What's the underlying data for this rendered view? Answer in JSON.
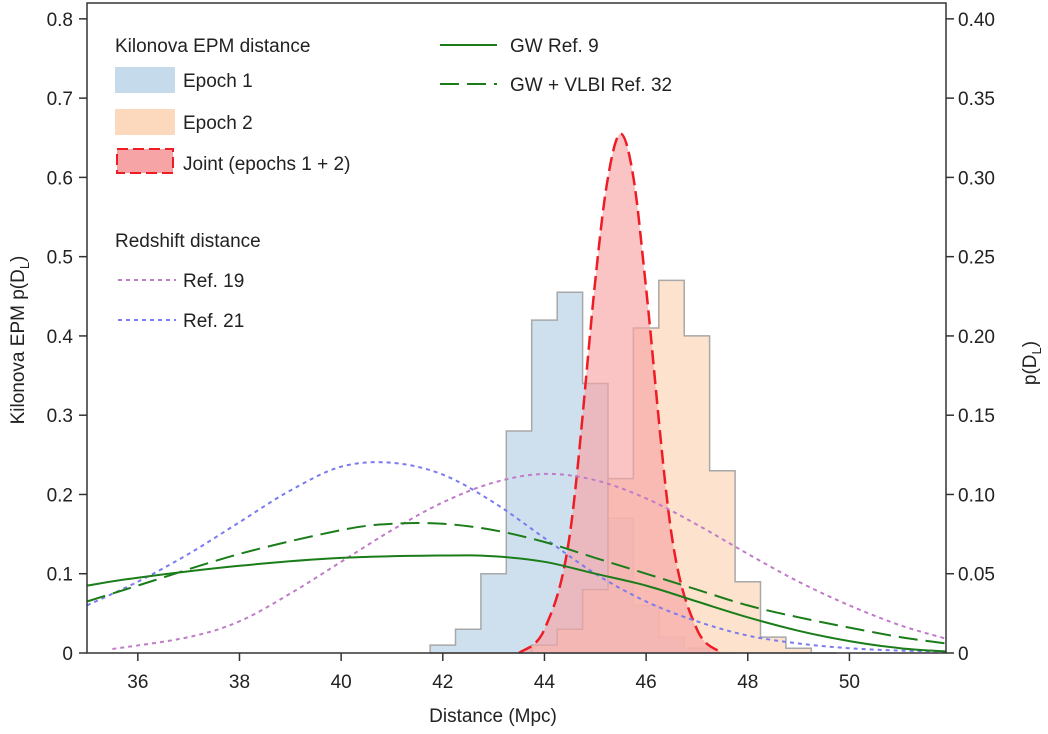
{
  "chart_data": {
    "type": "area",
    "xlabel": "Distance (Mpc)",
    "ylabel_left": "Kilonova EPM p(D",
    "ylabel_left_sub": "L",
    "ylabel_left_close": ")",
    "ylabel_right": "p(D",
    "ylabel_right_sub": "L",
    "ylabel_right_close": ")",
    "xlim": [
      35.0,
      51.9
    ],
    "ylim_left": [
      0,
      0.82
    ],
    "ylim_right": [
      0,
      0.41
    ],
    "x_ticks": [
      36,
      38,
      40,
      42,
      44,
      46,
      48,
      50
    ],
    "y_ticks_left": [
      "0",
      "0.1",
      "0.2",
      "0.3",
      "0.4",
      "0.5",
      "0.6",
      "0.7",
      "0.8"
    ],
    "y_ticks_right": [
      "0",
      "0.05",
      "0.10",
      "0.15",
      "0.20",
      "0.25",
      "0.30",
      "0.35",
      "0.40"
    ],
    "grid": false,
    "legend": {
      "group1_title": "Kilonova EPM distance",
      "group2_title": "Redshift distance",
      "epoch1": "Epoch 1",
      "epoch2": "Epoch 2",
      "joint": "Joint (epochs 1 + 2)",
      "ref19": "Ref. 19",
      "ref21": "Ref. 21",
      "gw": "GW Ref. 9",
      "gw_vlbi": "GW + VLBI Ref. 32"
    },
    "colors": {
      "epoch1_fill": "#c5dbeb",
      "epoch2_fill": "#fcd9bd",
      "joint_fill": "#f7a4a6",
      "joint_line": "#ee1c24",
      "outline": "#a8a8a8",
      "ref19": "#c07cc8",
      "ref21": "#7b7bf0",
      "gw": "#1a7d1a"
    },
    "series": [
      {
        "id": "epoch1",
        "axis": "left",
        "style": "histogram",
        "x": [
          42.0,
          42.5,
          43.0,
          43.5,
          44.0,
          44.5,
          45.0,
          45.5,
          46.0,
          46.5,
          47.0,
          47.5
        ],
        "values": [
          0.01,
          0.03,
          0.1,
          0.28,
          0.42,
          0.455,
          0.34,
          0.17,
          0.06,
          0.02,
          0.006,
          0.0
        ]
      },
      {
        "id": "epoch2",
        "axis": "left",
        "style": "histogram",
        "x": [
          44.0,
          44.5,
          45.0,
          45.5,
          46.0,
          46.5,
          47.0,
          47.5,
          48.0,
          48.5,
          49.0,
          49.5
        ],
        "values": [
          0.01,
          0.03,
          0.08,
          0.22,
          0.41,
          0.47,
          0.4,
          0.23,
          0.09,
          0.02,
          0.006,
          0.0
        ]
      },
      {
        "id": "joint",
        "axis": "left",
        "style": "dashed-fill",
        "x": [
          43.5,
          44.0,
          44.5,
          45.0,
          45.25,
          45.5,
          45.75,
          46.0,
          46.5,
          47.0,
          47.5
        ],
        "values": [
          0.0,
          0.03,
          0.15,
          0.47,
          0.6,
          0.655,
          0.6,
          0.46,
          0.15,
          0.03,
          0.0
        ]
      },
      {
        "id": "ref19",
        "axis": "left",
        "style": "dotted",
        "x": [
          35.5,
          37,
          38,
          39,
          40,
          41,
          42,
          43,
          44,
          45,
          46,
          47,
          48,
          49,
          50,
          51,
          51.9
        ],
        "values": [
          0.005,
          0.02,
          0.04,
          0.075,
          0.115,
          0.155,
          0.19,
          0.215,
          0.226,
          0.218,
          0.195,
          0.162,
          0.125,
          0.09,
          0.06,
          0.035,
          0.018
        ]
      },
      {
        "id": "ref21",
        "axis": "left",
        "style": "dotted",
        "x": [
          35,
          36,
          37,
          38,
          39,
          40,
          41,
          42,
          43,
          44,
          45,
          46,
          47,
          48,
          49,
          50,
          51,
          51.9
        ],
        "values": [
          0.06,
          0.09,
          0.125,
          0.165,
          0.205,
          0.235,
          0.24,
          0.225,
          0.19,
          0.145,
          0.1,
          0.065,
          0.04,
          0.022,
          0.012,
          0.006,
          0.003,
          0.002
        ]
      },
      {
        "id": "gw",
        "axis": "left",
        "style": "solid",
        "x": [
          35,
          36,
          38,
          40,
          42,
          43,
          44,
          45,
          46,
          47,
          48,
          49,
          50,
          51,
          51.9
        ],
        "values": [
          0.085,
          0.095,
          0.11,
          0.12,
          0.123,
          0.122,
          0.115,
          0.1,
          0.085,
          0.065,
          0.045,
          0.028,
          0.015,
          0.006,
          0.002
        ]
      },
      {
        "id": "gw_vlbi",
        "axis": "left",
        "style": "dashed",
        "x": [
          35,
          36,
          38,
          40,
          41,
          42,
          43,
          44,
          45,
          46,
          47,
          48,
          49,
          50,
          51,
          51.9
        ],
        "values": [
          0.065,
          0.085,
          0.125,
          0.155,
          0.163,
          0.163,
          0.155,
          0.14,
          0.12,
          0.1,
          0.08,
          0.06,
          0.045,
          0.032,
          0.02,
          0.012
        ]
      }
    ]
  }
}
